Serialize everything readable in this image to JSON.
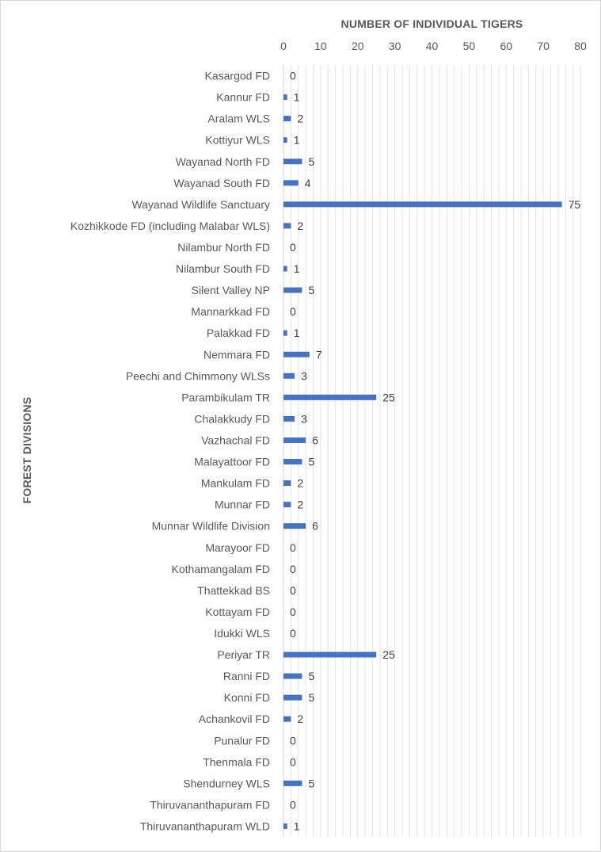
{
  "chart_data": {
    "type": "bar",
    "orientation": "horizontal",
    "xlabel": "NUMBER OF INDIVIDUAL TIGERS",
    "ylabel": "FOREST DIVISIONS",
    "xlim": [
      0,
      80
    ],
    "xticks": [
      0,
      10,
      20,
      30,
      40,
      50,
      60,
      70,
      80
    ],
    "x_axis_position": "top",
    "grid": true,
    "data_labels": true,
    "bar_color": "#4472c4",
    "categories": [
      "Kasargod FD",
      "Kannur FD",
      "Aralam WLS",
      "Kottiyur WLS",
      "Wayanad North FD",
      "Wayanad South FD",
      "Wayanad Wildlife Sanctuary",
      "Kozhikkode FD (including Malabar WLS)",
      "Nilambur North FD",
      "Nilambur South FD",
      "Silent Valley NP",
      "Mannarkkad FD",
      "Palakkad FD",
      "Nemmara FD",
      "Peechi and Chimmony WLSs",
      "Parambikulam TR",
      "Chalakkudy FD",
      "Vazhachal FD",
      "Malayattoor FD",
      "Mankulam FD",
      "Munnar FD",
      "Munnar Wildlife Division",
      "Marayoor FD",
      "Kothamangalam FD",
      "Thattekkad BS",
      "Kottayam FD",
      "Idukki WLS",
      "Periyar TR",
      "Ranni FD",
      "Konni FD",
      "Achankovil FD",
      "Punalur FD",
      "Thenmala FD",
      "Shendurney WLS",
      "Thiruvananthapuram FD",
      "Thiruvananthapuram WLD"
    ],
    "values": [
      0,
      1,
      2,
      1,
      5,
      4,
      75,
      2,
      0,
      1,
      5,
      0,
      1,
      7,
      3,
      25,
      3,
      6,
      5,
      2,
      2,
      6,
      0,
      0,
      0,
      0,
      0,
      25,
      5,
      5,
      2,
      0,
      0,
      5,
      0,
      1
    ]
  }
}
